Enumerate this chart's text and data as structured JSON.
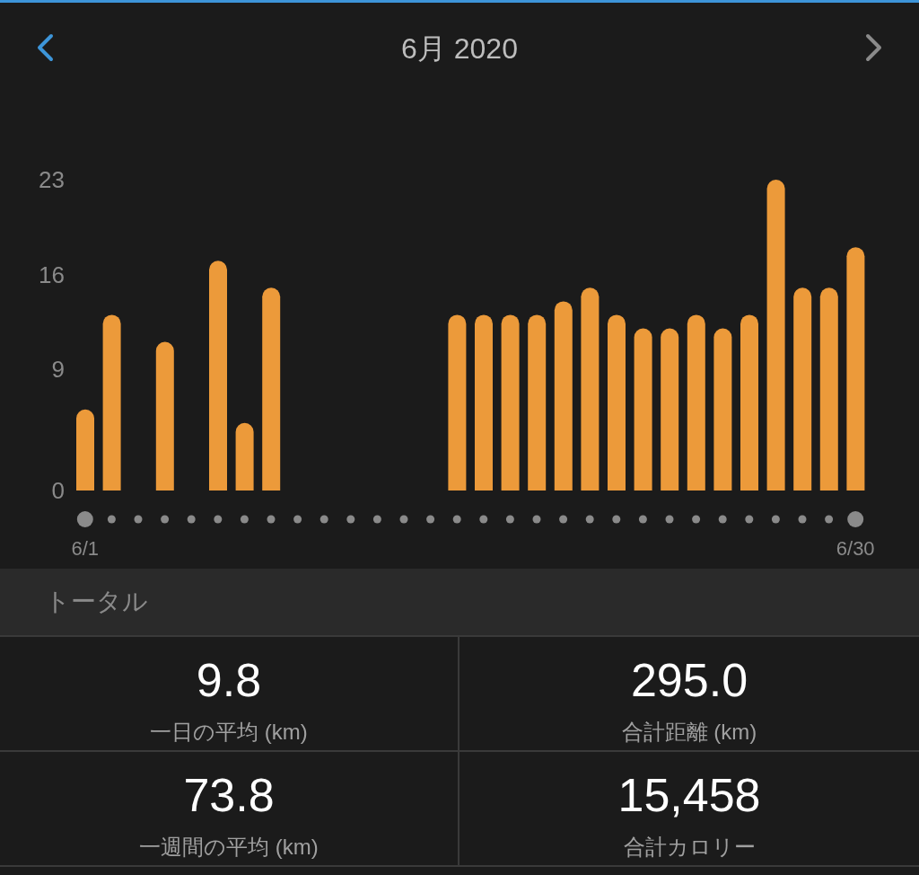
{
  "chart_data": [
    {
      "type": "bar",
      "title": "6月 2020",
      "categories": [
        "6/1",
        null,
        null,
        null,
        null,
        null,
        null,
        null,
        null,
        null,
        null,
        null,
        null,
        null,
        null,
        null,
        null,
        null,
        null,
        null,
        null,
        null,
        null,
        null,
        null,
        null,
        null,
        null,
        null,
        "6/30"
      ],
      "values": [
        6,
        13,
        null,
        11,
        null,
        17,
        5,
        15,
        null,
        null,
        null,
        null,
        null,
        null,
        13,
        13,
        13,
        13,
        14,
        15,
        13,
        12,
        12,
        13,
        12,
        13,
        23,
        15,
        15,
        18
      ],
      "color": "#ec9a3a",
      "ylim": [
        0,
        23
      ],
      "yticks": [
        0,
        9,
        16,
        23
      ]
    },
    {
      "type": "other",
      "title": "トータル",
      "annotations": [
        "9.8",
        "一日の平均 (km)",
        "295.0",
        "合計距離 (km)",
        "73.8",
        "一週間の平均 (km)",
        "15,458",
        "合計カロリー"
      ]
    }
  ]
}
